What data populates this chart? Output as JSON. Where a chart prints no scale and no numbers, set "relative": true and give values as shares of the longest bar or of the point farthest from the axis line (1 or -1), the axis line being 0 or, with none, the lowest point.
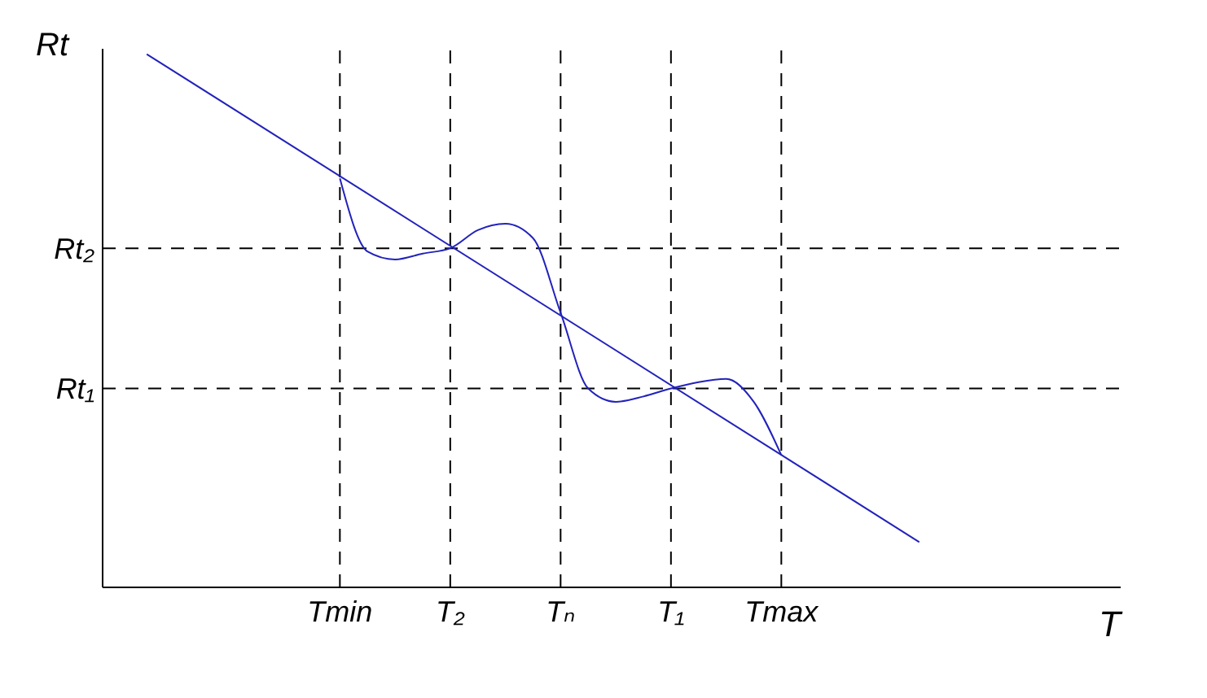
{
  "chart_data": {
    "type": "line",
    "relative": true,
    "xlabel": "T",
    "ylabel": "Rt",
    "categories": [
      null,
      null,
      null,
      null,
      null,
      null,
      null,
      "Tmin",
      null,
      null,
      null,
      "T₂",
      null,
      null,
      null,
      "Tₙ",
      null,
      null,
      null,
      "T₁",
      null,
      null,
      null,
      "Tmax",
      null,
      null,
      null,
      null,
      null
    ],
    "series": [
      {
        "color": "#2222bb",
        "values": [
          1,
          null,
          null,
          null,
          null,
          null,
          null,
          null,
          null,
          null,
          null,
          null,
          null,
          null,
          null,
          null,
          null,
          null,
          null,
          null,
          null,
          null,
          null,
          null,
          null,
          null,
          null,
          null,
          0.085
        ]
      },
      {
        "color": "#2222bb",
        "values": [
          null,
          null,
          null,
          null,
          null,
          null,
          null,
          0.767,
          0.63,
          0.615,
          0.626,
          0.636,
          0.67,
          0.682,
          0.655,
          0.515,
          0.373,
          0.348,
          0.358,
          0.373,
          0.385,
          0.391,
          0.348,
          0.248,
          null,
          null,
          null,
          null,
          null
        ]
      }
    ],
    "ref_lines": [
      {
        "axis": "y",
        "value": 0.636,
        "label": "Rt₂",
        "line_style": "dashed"
      },
      {
        "axis": "y",
        "value": 0.373,
        "label": "Rt₁",
        "line_style": "dashed"
      }
    ],
    "grid": "x",
    "line_style": "solid",
    "marker": "none",
    "legend": false
  }
}
